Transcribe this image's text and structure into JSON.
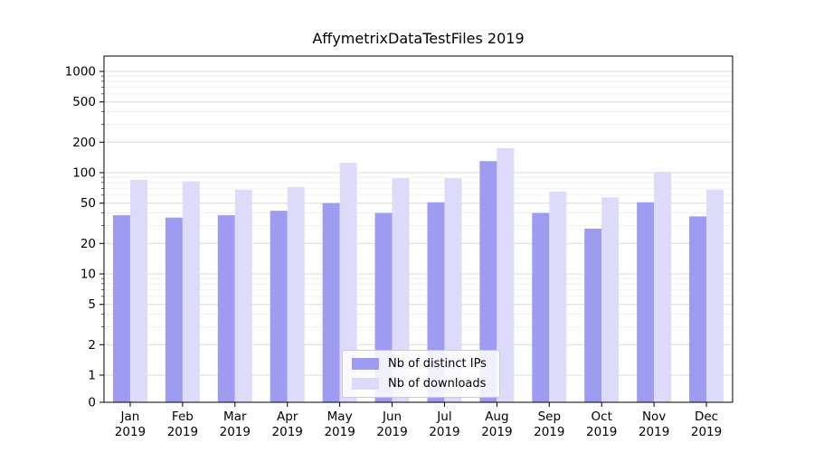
{
  "chart_data": {
    "type": "bar",
    "title": "AffymetrixDataTestFiles 2019",
    "year": "2019",
    "categories": [
      "Jan",
      "Feb",
      "Mar",
      "Apr",
      "May",
      "Jun",
      "Jul",
      "Aug",
      "Sep",
      "Oct",
      "Nov",
      "Dec"
    ],
    "series": [
      {
        "name": "Nb of distinct IPs",
        "color": "#9e9cf1",
        "values": [
          38,
          36,
          38,
          42,
          50,
          40,
          51,
          130,
          40,
          28,
          51,
          37
        ]
      },
      {
        "name": "Nb of downloads",
        "color": "#dcdbf9",
        "values": [
          85,
          82,
          68,
          72,
          125,
          88,
          88,
          175,
          65,
          57,
          102,
          68
        ]
      }
    ],
    "yscale": "symlog",
    "yticks": [
      0,
      1,
      2,
      5,
      10,
      20,
      50,
      100,
      200,
      500,
      1000
    ],
    "ylim": [
      0,
      1400
    ],
    "grid": true,
    "legend_position": "bottom-center",
    "colors": {
      "major_grid": "#dddddd",
      "minor_grid": "#eeeeee",
      "axis": "#000000",
      "legend_border": "#cccccc"
    }
  }
}
